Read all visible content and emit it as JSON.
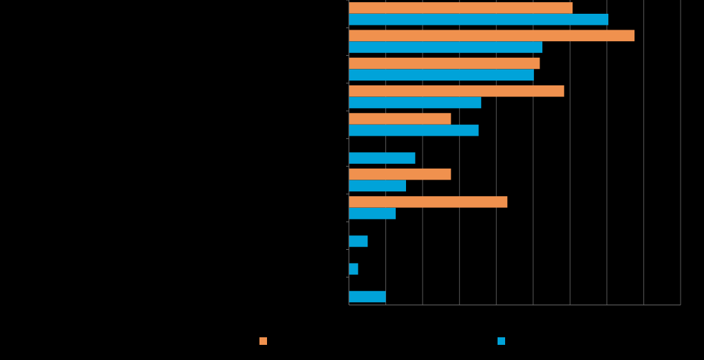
{
  "chart_data": {
    "type": "bar",
    "orientation": "horizontal",
    "title": "",
    "xlabel": "",
    "ylabel": "",
    "xlim": [
      0,
      9
    ],
    "grid": true,
    "legend": "bottom",
    "categories": [
      "",
      "",
      "",
      "",
      "",
      "",
      "",
      "",
      "",
      "",
      ""
    ],
    "series": [
      {
        "color": "#F0914E",
        "values": [
          6.07,
          7.75,
          5.18,
          5.84,
          2.77,
          0,
          2.77,
          4.3,
          0,
          0,
          0
        ]
      },
      {
        "color": "#00A3D9",
        "values": [
          7.04,
          5.25,
          5.02,
          3.59,
          3.52,
          1.8,
          1.55,
          1.27,
          0.51,
          0.25,
          1.0
        ]
      }
    ]
  }
}
